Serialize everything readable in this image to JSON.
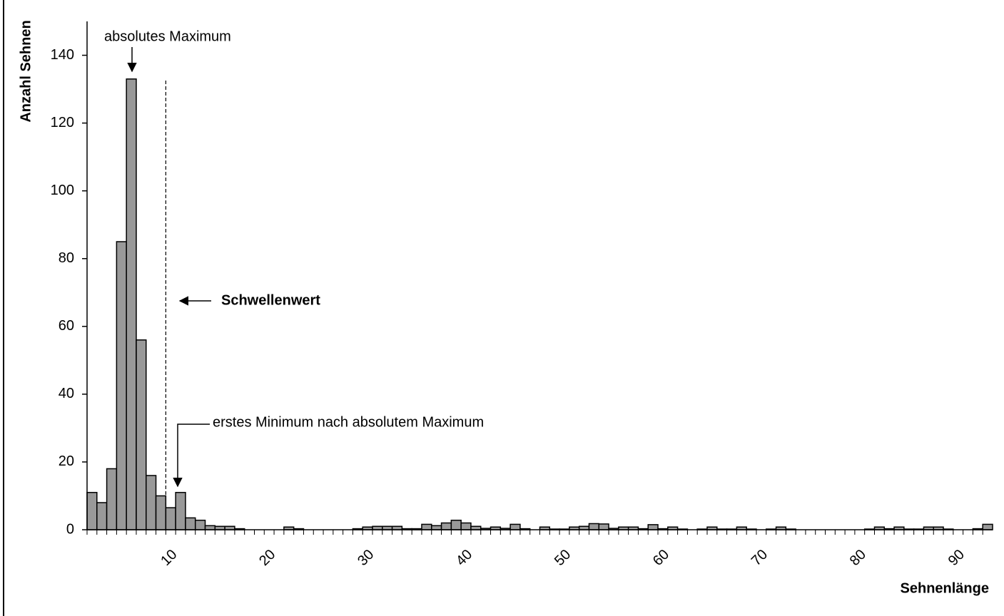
{
  "chart_data": {
    "type": "bar",
    "x_label": "Sehnenlänge",
    "y_label": "Anzahl Sehnen",
    "annotations": [
      "absolutes Maximum",
      "Schwellenwert",
      "erstes Minimum nach absolutem Maximum"
    ],
    "threshold": 9.5,
    "categories": [
      null,
      null,
      null,
      null,
      null,
      null,
      null,
      null,
      "10",
      null,
      null,
      null,
      null,
      null,
      null,
      null,
      null,
      null,
      "20",
      null,
      null,
      null,
      null,
      null,
      null,
      null,
      null,
      null,
      "30",
      null,
      null,
      null,
      null,
      null,
      null,
      null,
      null,
      null,
      "40",
      null,
      null,
      null,
      null,
      null,
      null,
      null,
      null,
      null,
      "50",
      null,
      null,
      null,
      null,
      null,
      null,
      null,
      null,
      null,
      "60",
      null,
      null,
      null,
      null,
      null,
      null,
      null,
      null,
      null,
      "70",
      null,
      null,
      null,
      null,
      null,
      null,
      null,
      null,
      null,
      "80",
      null,
      null,
      null,
      null,
      null,
      null,
      null,
      null,
      null,
      "90",
      null,
      null,
      null
    ],
    "values": [
      11,
      8,
      18,
      85,
      133,
      56,
      16,
      10,
      6.5,
      11,
      3.5,
      2.8,
      1.2,
      1,
      1,
      0.3,
      0,
      0,
      0,
      0,
      0.8,
      0.3,
      0,
      0,
      0,
      0,
      0,
      0.3,
      0.8,
      1,
      1,
      1,
      0.3,
      0.3,
      1.6,
      1.2,
      2,
      2.8,
      2,
      1,
      0.4,
      0.8,
      0.4,
      1.6,
      0.3,
      0,
      0.8,
      0.2,
      0.2,
      0.8,
      1,
      1.8,
      1.7,
      0.4,
      0.8,
      0.8,
      0.3,
      1.5,
      0.3,
      0.8,
      0.2,
      0,
      0.2,
      0.8,
      0.2,
      0.2,
      0.8,
      0.2,
      0,
      0.2,
      0.8,
      0.2,
      0,
      0,
      0,
      0,
      0,
      0,
      0,
      0.2,
      0.8,
      0.3,
      0.8,
      0.2,
      0.2,
      0.8,
      0.8,
      0.2,
      0,
      0,
      0.3,
      1.6
    ],
    "color": "#999999",
    "ylim": [
      0,
      150
    ],
    "yticks": [
      0,
      20,
      40,
      60,
      80,
      100,
      120,
      140
    ]
  }
}
